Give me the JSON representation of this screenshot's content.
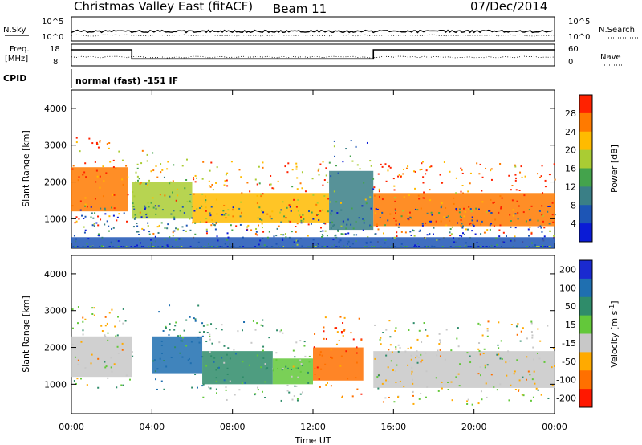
{
  "header": {
    "title": "Christmas Valley East (fitACF)",
    "beam": "Beam 11",
    "date": "07/Dec/2014"
  },
  "summary_panel": {
    "nsky_label": "N.Sky",
    "nsky_ticks": [
      "10^5",
      "10^0"
    ],
    "nsearch_label": "N.Search",
    "nsearch_ticks": [
      "10^5",
      "10^0"
    ],
    "freq_label_line1": "Freq.",
    "freq_label_line2": "[MHz]",
    "freq_ticks": [
      "18",
      "8"
    ],
    "freq_range": [
      8,
      18
    ],
    "freq_steps": [
      {
        "t0": 0.0,
        "t1": 3.0,
        "value": 15.5
      },
      {
        "t0": 3.0,
        "t1": 15.0,
        "value": 10.8
      },
      {
        "t0": 15.0,
        "t1": 24.0,
        "value": 15.5
      }
    ],
    "nave_label": "Nave",
    "nave_ticks": [
      "60",
      "0"
    ],
    "cpid_label": "CPID",
    "cpid_text": "normal (fast) -151 IF"
  },
  "chart_data": [
    {
      "type": "heatmap",
      "name": "power",
      "ylabel": "Slant Range [km]",
      "xlabel": "",
      "xlim": [
        0,
        24
      ],
      "ylim": [
        200,
        4500
      ],
      "yticks": [
        "1000",
        "2000",
        "3000",
        "4000"
      ],
      "ytick_values": [
        1000,
        2000,
        3000,
        4000
      ],
      "colorbar_label": "Power [dB]",
      "colorbar_ticks": [
        "4",
        "8",
        "12",
        "16",
        "20",
        "24",
        "28"
      ],
      "colorbar_colors": [
        "#0a1bd6",
        "#1d55b5",
        "#3a7f86",
        "#44a34c",
        "#aacc33",
        "#ffbb00",
        "#ff7a00",
        "#ff2200"
      ],
      "echo_bands": [
        {
          "t0": 0.0,
          "t1": 2.8,
          "r0": 1200,
          "r1": 2400,
          "level": 28
        },
        {
          "t0": 3.0,
          "t1": 6.0,
          "r0": 1000,
          "r1": 2000,
          "level": 20
        },
        {
          "t0": 6.0,
          "t1": 12.8,
          "r0": 900,
          "r1": 1700,
          "level": 24
        },
        {
          "t0": 12.8,
          "t1": 15.0,
          "r0": 700,
          "r1": 2300,
          "level": 12
        },
        {
          "t0": 15.0,
          "t1": 24.0,
          "r0": 800,
          "r1": 1700,
          "level": 28
        },
        {
          "t0": 0.0,
          "t1": 24.0,
          "r0": 200,
          "r1": 500,
          "level": 8
        }
      ]
    },
    {
      "type": "heatmap",
      "name": "velocity",
      "ylabel": "Slant Range [km]",
      "xlabel": "Time UT",
      "xlim": [
        0,
        24
      ],
      "ylim": [
        200,
        4500
      ],
      "yticks": [
        "1000",
        "2000",
        "3000",
        "4000"
      ],
      "ytick_values": [
        1000,
        2000,
        3000,
        4000
      ],
      "xticks": [
        "00:00",
        "04:00",
        "08:00",
        "12:00",
        "16:00",
        "20:00",
        "00:00"
      ],
      "xtick_values": [
        0,
        4,
        8,
        12,
        16,
        20,
        24
      ],
      "colorbar_label": "Velocity [m s",
      "colorbar_label_sup": "-1",
      "colorbar_label_end": "]",
      "colorbar_ticks": [
        "200",
        "100",
        "50",
        "15",
        "-15",
        "-50",
        "-100",
        "-200"
      ],
      "colorbar_colors": [
        "#1a2ad0",
        "#1f6fb0",
        "#2f8c6a",
        "#63c83a",
        "#c8c8c8",
        "#ffaa00",
        "#ff7000",
        "#ff1800"
      ],
      "echo_bands": [
        {
          "t0": 0.0,
          "t1": 3.0,
          "r0": 1200,
          "r1": 2300,
          "level": 0
        },
        {
          "t0": 4.0,
          "t1": 6.5,
          "r0": 1300,
          "r1": 2300,
          "level": 100
        },
        {
          "t0": 6.5,
          "t1": 10.0,
          "r0": 1000,
          "r1": 1900,
          "level": 50
        },
        {
          "t0": 10.0,
          "t1": 12.0,
          "r0": 1000,
          "r1": 1700,
          "level": 40
        },
        {
          "t0": 12.0,
          "t1": 14.5,
          "r0": 1100,
          "r1": 2000,
          "level": -80
        },
        {
          "t0": 15.0,
          "t1": 24.0,
          "r0": 900,
          "r1": 1900,
          "level": 0
        }
      ]
    }
  ]
}
